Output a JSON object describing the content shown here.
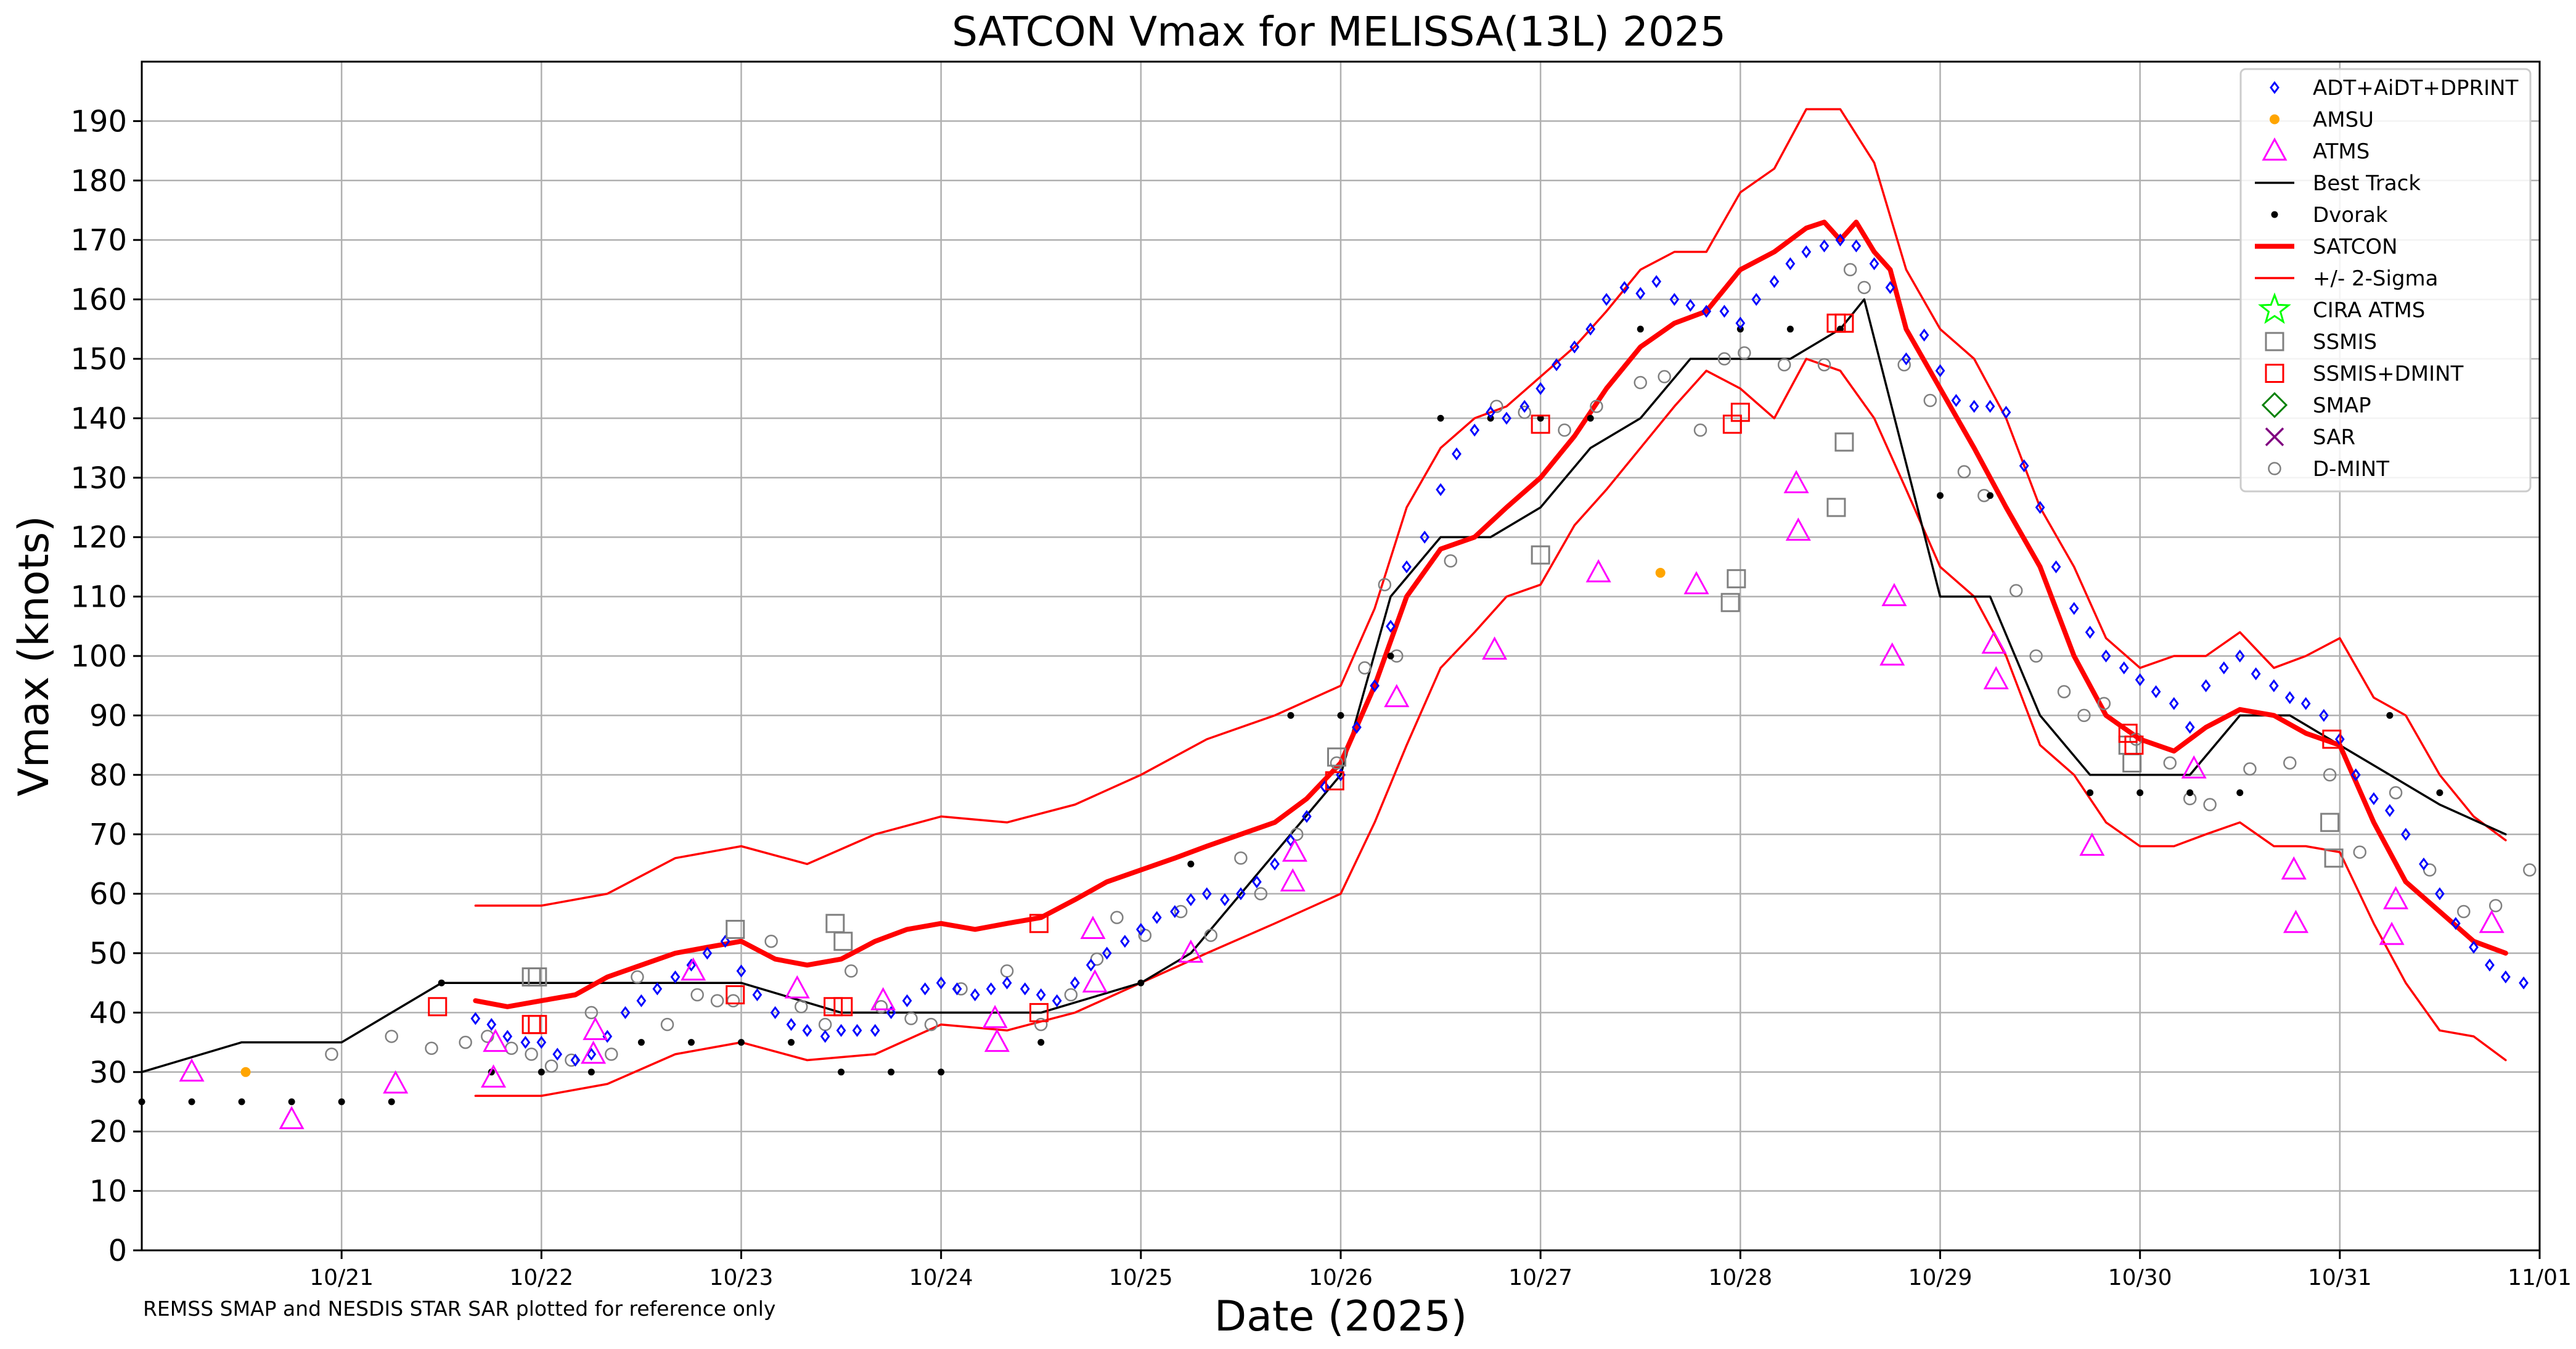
{
  "chart_data": {
    "type": "scatter",
    "title": "SATCON Vmax for MELISSA(13L) 2025",
    "xlabel": "Date (2025)",
    "ylabel": "Vmax (knots)",
    "footnote": "REMSS SMAP and NESDIS STAR SAR plotted for reference only",
    "xlim": [
      "10/20 00Z",
      "11/01 00Z"
    ],
    "ylim": [
      0,
      200
    ],
    "grid": true,
    "legend_position": "top-right",
    "x_ticks": [
      "10/21",
      "10/22",
      "10/23",
      "10/24",
      "10/25",
      "10/26",
      "10/27",
      "10/28",
      "10/29",
      "10/30",
      "10/31",
      "11/01"
    ],
    "y_ticks": [
      "0",
      "10",
      "20",
      "30",
      "40",
      "50",
      "60",
      "70",
      "80",
      "90",
      "100",
      "110",
      "120",
      "130",
      "140",
      "150",
      "160",
      "170",
      "180",
      "190"
    ],
    "series": [
      {
        "name": "ADT+AiDT+DPRINT",
        "marker": "diamond",
        "color": "#0000ff",
        "x_days": [
          1.67,
          1.75,
          1.83,
          1.92,
          2.0,
          2.08,
          2.17,
          2.25,
          2.33,
          2.42,
          2.5,
          2.58,
          2.67,
          2.75,
          2.83,
          2.92,
          3.0,
          3.08,
          3.17,
          3.25,
          3.33,
          3.42,
          3.5,
          3.58,
          3.67,
          3.75,
          3.83,
          3.92,
          4.0,
          4.08,
          4.17,
          4.25,
          4.33,
          4.42,
          4.5,
          4.58,
          4.67,
          4.75,
          4.83,
          4.92,
          5.0,
          5.08,
          5.17,
          5.25,
          5.33,
          5.42,
          5.5,
          5.58,
          5.67,
          5.75,
          5.83,
          5.92,
          6.0,
          6.08,
          6.17,
          6.25,
          6.33,
          6.42,
          6.5,
          6.58,
          6.67,
          6.75,
          6.83,
          6.92,
          7.0,
          7.08,
          7.17,
          7.25,
          7.33,
          7.42,
          7.5,
          7.58,
          7.67,
          7.75,
          7.83,
          7.92,
          8.0,
          8.08,
          8.17,
          8.25,
          8.33,
          8.42,
          8.5,
          8.58,
          8.67,
          8.75,
          8.83,
          8.92,
          9.0,
          9.08,
          9.17,
          9.25,
          9.33,
          9.42,
          9.5,
          9.58,
          9.67,
          9.75,
          9.83,
          9.92,
          10.0,
          10.08,
          10.17,
          10.25,
          10.33,
          10.42,
          10.5,
          10.58,
          10.67,
          10.75,
          10.83,
          10.92,
          11.0,
          11.08,
          11.17,
          11.25,
          11.33,
          11.42,
          11.5,
          11.58,
          11.67,
          11.75,
          11.83,
          11.92
        ],
        "y": [
          39,
          38,
          36,
          35,
          35,
          33,
          32,
          33,
          36,
          40,
          42,
          44,
          46,
          48,
          50,
          52,
          47,
          43,
          40,
          38,
          37,
          36,
          37,
          37,
          37,
          40,
          42,
          44,
          45,
          44,
          43,
          44,
          45,
          44,
          43,
          42,
          45,
          48,
          50,
          52,
          54,
          56,
          57,
          59,
          60,
          59,
          60,
          62,
          65,
          69,
          73,
          78,
          80,
          88,
          95,
          105,
          115,
          120,
          128,
          134,
          138,
          141,
          140,
          142,
          145,
          149,
          152,
          155,
          160,
          162,
          161,
          163,
          160,
          159,
          158,
          158,
          156,
          160,
          163,
          166,
          168,
          169,
          170,
          169,
          166,
          162,
          150,
          154,
          148,
          143,
          142,
          142,
          141,
          132,
          125,
          115,
          108,
          104,
          100,
          98,
          96,
          94,
          92,
          88,
          95,
          98,
          100,
          97,
          95,
          93,
          92,
          90,
          86,
          80,
          76,
          74,
          70,
          65,
          60,
          55,
          51,
          48,
          46,
          45
        ]
      },
      {
        "name": "AMSU",
        "marker": "dot",
        "color": "#ffa500",
        "x_days": [
          0.52,
          7.6
        ],
        "y": [
          30,
          114
        ]
      },
      {
        "name": "ATMS",
        "marker": "triangle",
        "color": "#ff00ff",
        "x_days": [
          0.25,
          0.75,
          1.27,
          1.76,
          1.77,
          2.26,
          2.27,
          2.76,
          3.28,
          3.71,
          4.27,
          4.28,
          4.76,
          4.77,
          5.25,
          5.76,
          5.77,
          6.28,
          6.77,
          7.29,
          7.78,
          8.28,
          8.29,
          8.76,
          8.77,
          9.27,
          9.28,
          9.76,
          10.27,
          10.77,
          10.78,
          11.26,
          11.28,
          11.76
        ],
        "y": [
          30,
          22,
          28,
          29,
          35,
          33,
          37,
          47,
          44,
          42,
          39,
          35,
          54,
          45,
          50,
          62,
          67,
          93,
          101,
          114,
          112,
          129,
          121,
          100,
          110,
          102,
          96,
          68,
          81,
          64,
          55,
          53,
          59,
          55
        ]
      },
      {
        "name": "Best Track",
        "marker": "line-black",
        "color": "#000000",
        "x_days": [
          0.0,
          0.5,
          1.0,
          1.5,
          2.0,
          2.5,
          3.0,
          3.5,
          4.0,
          4.5,
          5.0,
          5.25,
          5.5,
          6.0,
          6.25,
          6.5,
          6.75,
          7.0,
          7.25,
          7.5,
          7.75,
          8.0,
          8.25,
          8.5,
          8.62,
          9.0,
          9.25,
          9.5,
          9.75,
          10.0,
          10.25,
          10.5,
          10.75,
          11.0,
          11.25,
          11.5,
          11.83
        ],
        "y": [
          30,
          35,
          35,
          45,
          45,
          45,
          45,
          40,
          40,
          40,
          45,
          50,
          60,
          80,
          110,
          120,
          120,
          125,
          135,
          140,
          150,
          150,
          150,
          155,
          160,
          110,
          110,
          90,
          80,
          80,
          80,
          90,
          90,
          85,
          80,
          75,
          70
        ]
      },
      {
        "name": "Dvorak",
        "marker": "small-dot",
        "color": "#000000",
        "x_days": [
          0.0,
          0.25,
          0.5,
          0.75,
          1.0,
          1.25,
          1.5,
          1.75,
          2.0,
          2.25,
          2.5,
          2.75,
          3.0,
          3.25,
          3.5,
          3.75,
          4.0,
          4.5,
          5.0,
          5.25,
          5.75,
          6.0,
          6.25,
          6.5,
          6.75,
          7.0,
          7.25,
          7.5,
          8.0,
          8.25,
          8.5,
          9.0,
          9.25,
          9.75,
          10.0,
          10.25,
          10.5,
          11.25,
          11.5
        ],
        "y": [
          25,
          25,
          25,
          25,
          25,
          25,
          45,
          30,
          30,
          30,
          35,
          35,
          35,
          35,
          30,
          30,
          30,
          35,
          45,
          65,
          90,
          90,
          100,
          140,
          140,
          140,
          140,
          155,
          155,
          155,
          155,
          127,
          127,
          77,
          77,
          77,
          77,
          90,
          77
        ]
      },
      {
        "name": "SATCON",
        "marker": "line-red-thick",
        "color": "#ff0000",
        "x_days": [
          1.67,
          1.83,
          2.0,
          2.17,
          2.33,
          2.5,
          2.67,
          2.83,
          3.0,
          3.17,
          3.33,
          3.5,
          3.67,
          3.83,
          4.0,
          4.17,
          4.33,
          4.5,
          4.67,
          4.83,
          5.0,
          5.17,
          5.33,
          5.5,
          5.67,
          5.83,
          6.0,
          6.17,
          6.33,
          6.5,
          6.67,
          6.83,
          7.0,
          7.17,
          7.33,
          7.5,
          7.67,
          7.83,
          8.0,
          8.17,
          8.33,
          8.42,
          8.5,
          8.58,
          8.67,
          8.75,
          8.83,
          9.0,
          9.17,
          9.33,
          9.5,
          9.67,
          9.83,
          10.0,
          10.17,
          10.33,
          10.5,
          10.67,
          10.83,
          11.0,
          11.17,
          11.33,
          11.5,
          11.67,
          11.83
        ],
        "y": [
          42,
          41,
          42,
          43,
          46,
          48,
          50,
          51,
          52,
          49,
          48,
          49,
          52,
          54,
          55,
          54,
          55,
          56,
          59,
          62,
          64,
          66,
          68,
          70,
          72,
          76,
          82,
          95,
          110,
          118,
          120,
          125,
          130,
          137,
          145,
          152,
          156,
          158,
          165,
          168,
          172,
          173,
          170,
          173,
          168,
          165,
          155,
          145,
          135,
          125,
          115,
          100,
          90,
          86,
          84,
          88,
          91,
          90,
          87,
          85,
          72,
          62,
          57,
          52,
          50
        ]
      },
      {
        "name": "+/- 2-Sigma upper",
        "marker": "line-red-thin",
        "color": "#ff0000",
        "x_days": [
          1.67,
          2.0,
          2.33,
          2.67,
          3.0,
          3.33,
          3.67,
          4.0,
          4.33,
          4.67,
          5.0,
          5.33,
          5.67,
          6.0,
          6.17,
          6.33,
          6.5,
          6.67,
          6.83,
          7.0,
          7.17,
          7.33,
          7.5,
          7.67,
          7.83,
          8.0,
          8.17,
          8.33,
          8.5,
          8.67,
          8.83,
          9.0,
          9.17,
          9.33,
          9.5,
          9.67,
          9.83,
          10.0,
          10.17,
          10.33,
          10.5,
          10.67,
          10.83,
          11.0,
          11.17,
          11.33,
          11.5,
          11.67,
          11.83
        ],
        "y": [
          58,
          58,
          60,
          66,
          68,
          65,
          70,
          73,
          72,
          75,
          80,
          86,
          90,
          95,
          108,
          125,
          135,
          140,
          142,
          147,
          152,
          158,
          165,
          168,
          168,
          178,
          182,
          192,
          192,
          183,
          165,
          155,
          150,
          140,
          125,
          115,
          103,
          98,
          100,
          100,
          104,
          98,
          100,
          103,
          93,
          90,
          80,
          73,
          69
        ]
      },
      {
        "name": "+/- 2-Sigma lower",
        "marker": "line-red-thin",
        "color": "#ff0000",
        "x_days": [
          1.67,
          2.0,
          2.33,
          2.67,
          3.0,
          3.33,
          3.67,
          4.0,
          4.33,
          4.67,
          5.0,
          5.33,
          5.67,
          6.0,
          6.17,
          6.33,
          6.5,
          6.67,
          6.83,
          7.0,
          7.17,
          7.33,
          7.5,
          7.67,
          7.83,
          8.0,
          8.17,
          8.33,
          8.5,
          8.67,
          8.83,
          9.0,
          9.17,
          9.33,
          9.5,
          9.67,
          9.83,
          10.0,
          10.17,
          10.33,
          10.5,
          10.67,
          10.83,
          11.0,
          11.17,
          11.33,
          11.5,
          11.67,
          11.83
        ],
        "y": [
          26,
          26,
          28,
          33,
          35,
          32,
          33,
          38,
          37,
          40,
          45,
          50,
          55,
          60,
          72,
          85,
          98,
          104,
          110,
          112,
          122,
          128,
          135,
          142,
          148,
          145,
          140,
          150,
          148,
          140,
          128,
          115,
          110,
          100,
          85,
          80,
          72,
          68,
          68,
          70,
          72,
          68,
          68,
          67,
          55,
          45,
          37,
          36,
          32
        ]
      },
      {
        "name": "CIRA ATMS",
        "marker": "star",
        "color": "#00ff00",
        "x_days": [],
        "y": []
      },
      {
        "name": "SSMIS",
        "marker": "square",
        "color": "#808080",
        "x_days": [
          1.95,
          1.98,
          2.97,
          3.47,
          3.51,
          5.98,
          7.0,
          7.95,
          7.98,
          8.52,
          8.48,
          9.94,
          9.96,
          10.95,
          10.97
        ],
        "y": [
          46,
          46,
          54,
          55,
          52,
          83,
          117,
          109,
          113,
          136,
          125,
          85,
          82,
          72,
          66
        ]
      },
      {
        "name": "SSMIS+DMINT",
        "marker": "square",
        "color": "#ff0000",
        "x_days": [
          1.48,
          1.95,
          1.98,
          2.97,
          3.46,
          3.51,
          4.49,
          4.49,
          5.97,
          7.0,
          7.96,
          8.0,
          8.48,
          8.52,
          9.94,
          9.97,
          10.96
        ],
        "y": [
          41,
          38,
          38,
          43,
          41,
          41,
          55,
          40,
          79,
          139,
          139,
          141,
          156,
          156,
          87,
          85,
          86
        ]
      },
      {
        "name": "SMAP",
        "marker": "diamond-outline",
        "color": "#008000",
        "x_days": [],
        "y": []
      },
      {
        "name": "SAR",
        "marker": "x",
        "color": "#800080",
        "x_days": [],
        "y": []
      },
      {
        "name": "D-MINT",
        "marker": "circle-outline",
        "color": "#808080",
        "x_days": [
          0.95,
          1.25,
          1.45,
          1.62,
          1.73,
          1.85,
          1.95,
          2.05,
          2.15,
          2.25,
          2.35,
          2.48,
          2.63,
          2.78,
          2.88,
          2.96,
          3.15,
          3.3,
          3.42,
          3.55,
          3.7,
          3.85,
          3.95,
          4.1,
          4.33,
          4.5,
          4.65,
          4.78,
          4.88,
          5.02,
          5.2,
          5.35,
          5.5,
          5.6,
          5.78,
          5.98,
          6.12,
          6.22,
          6.28,
          6.55,
          6.78,
          6.92,
          7.12,
          7.28,
          7.5,
          7.62,
          7.8,
          7.92,
          8.02,
          8.22,
          8.42,
          8.55,
          8.62,
          8.82,
          8.95,
          9.12,
          9.22,
          9.38,
          9.48,
          9.62,
          9.72,
          9.82,
          9.98,
          10.15,
          10.25,
          10.35,
          10.55,
          10.75,
          10.95,
          11.1,
          11.28,
          11.45,
          11.62,
          11.78,
          11.95
        ],
        "y": [
          33,
          36,
          34,
          35,
          36,
          34,
          33,
          31,
          32,
          40,
          33,
          46,
          38,
          43,
          42,
          42,
          52,
          41,
          38,
          47,
          41,
          39,
          38,
          44,
          47,
          38,
          43,
          49,
          56,
          53,
          57,
          53,
          66,
          60,
          70,
          82,
          98,
          112,
          100,
          116,
          142,
          141,
          138,
          142,
          146,
          147,
          138,
          150,
          151,
          149,
          149,
          165,
          162,
          149,
          143,
          131,
          127,
          111,
          100,
          94,
          90,
          92,
          86,
          82,
          76,
          75,
          81,
          82,
          80,
          67,
          77,
          64,
          57,
          58,
          64
        ]
      }
    ]
  }
}
